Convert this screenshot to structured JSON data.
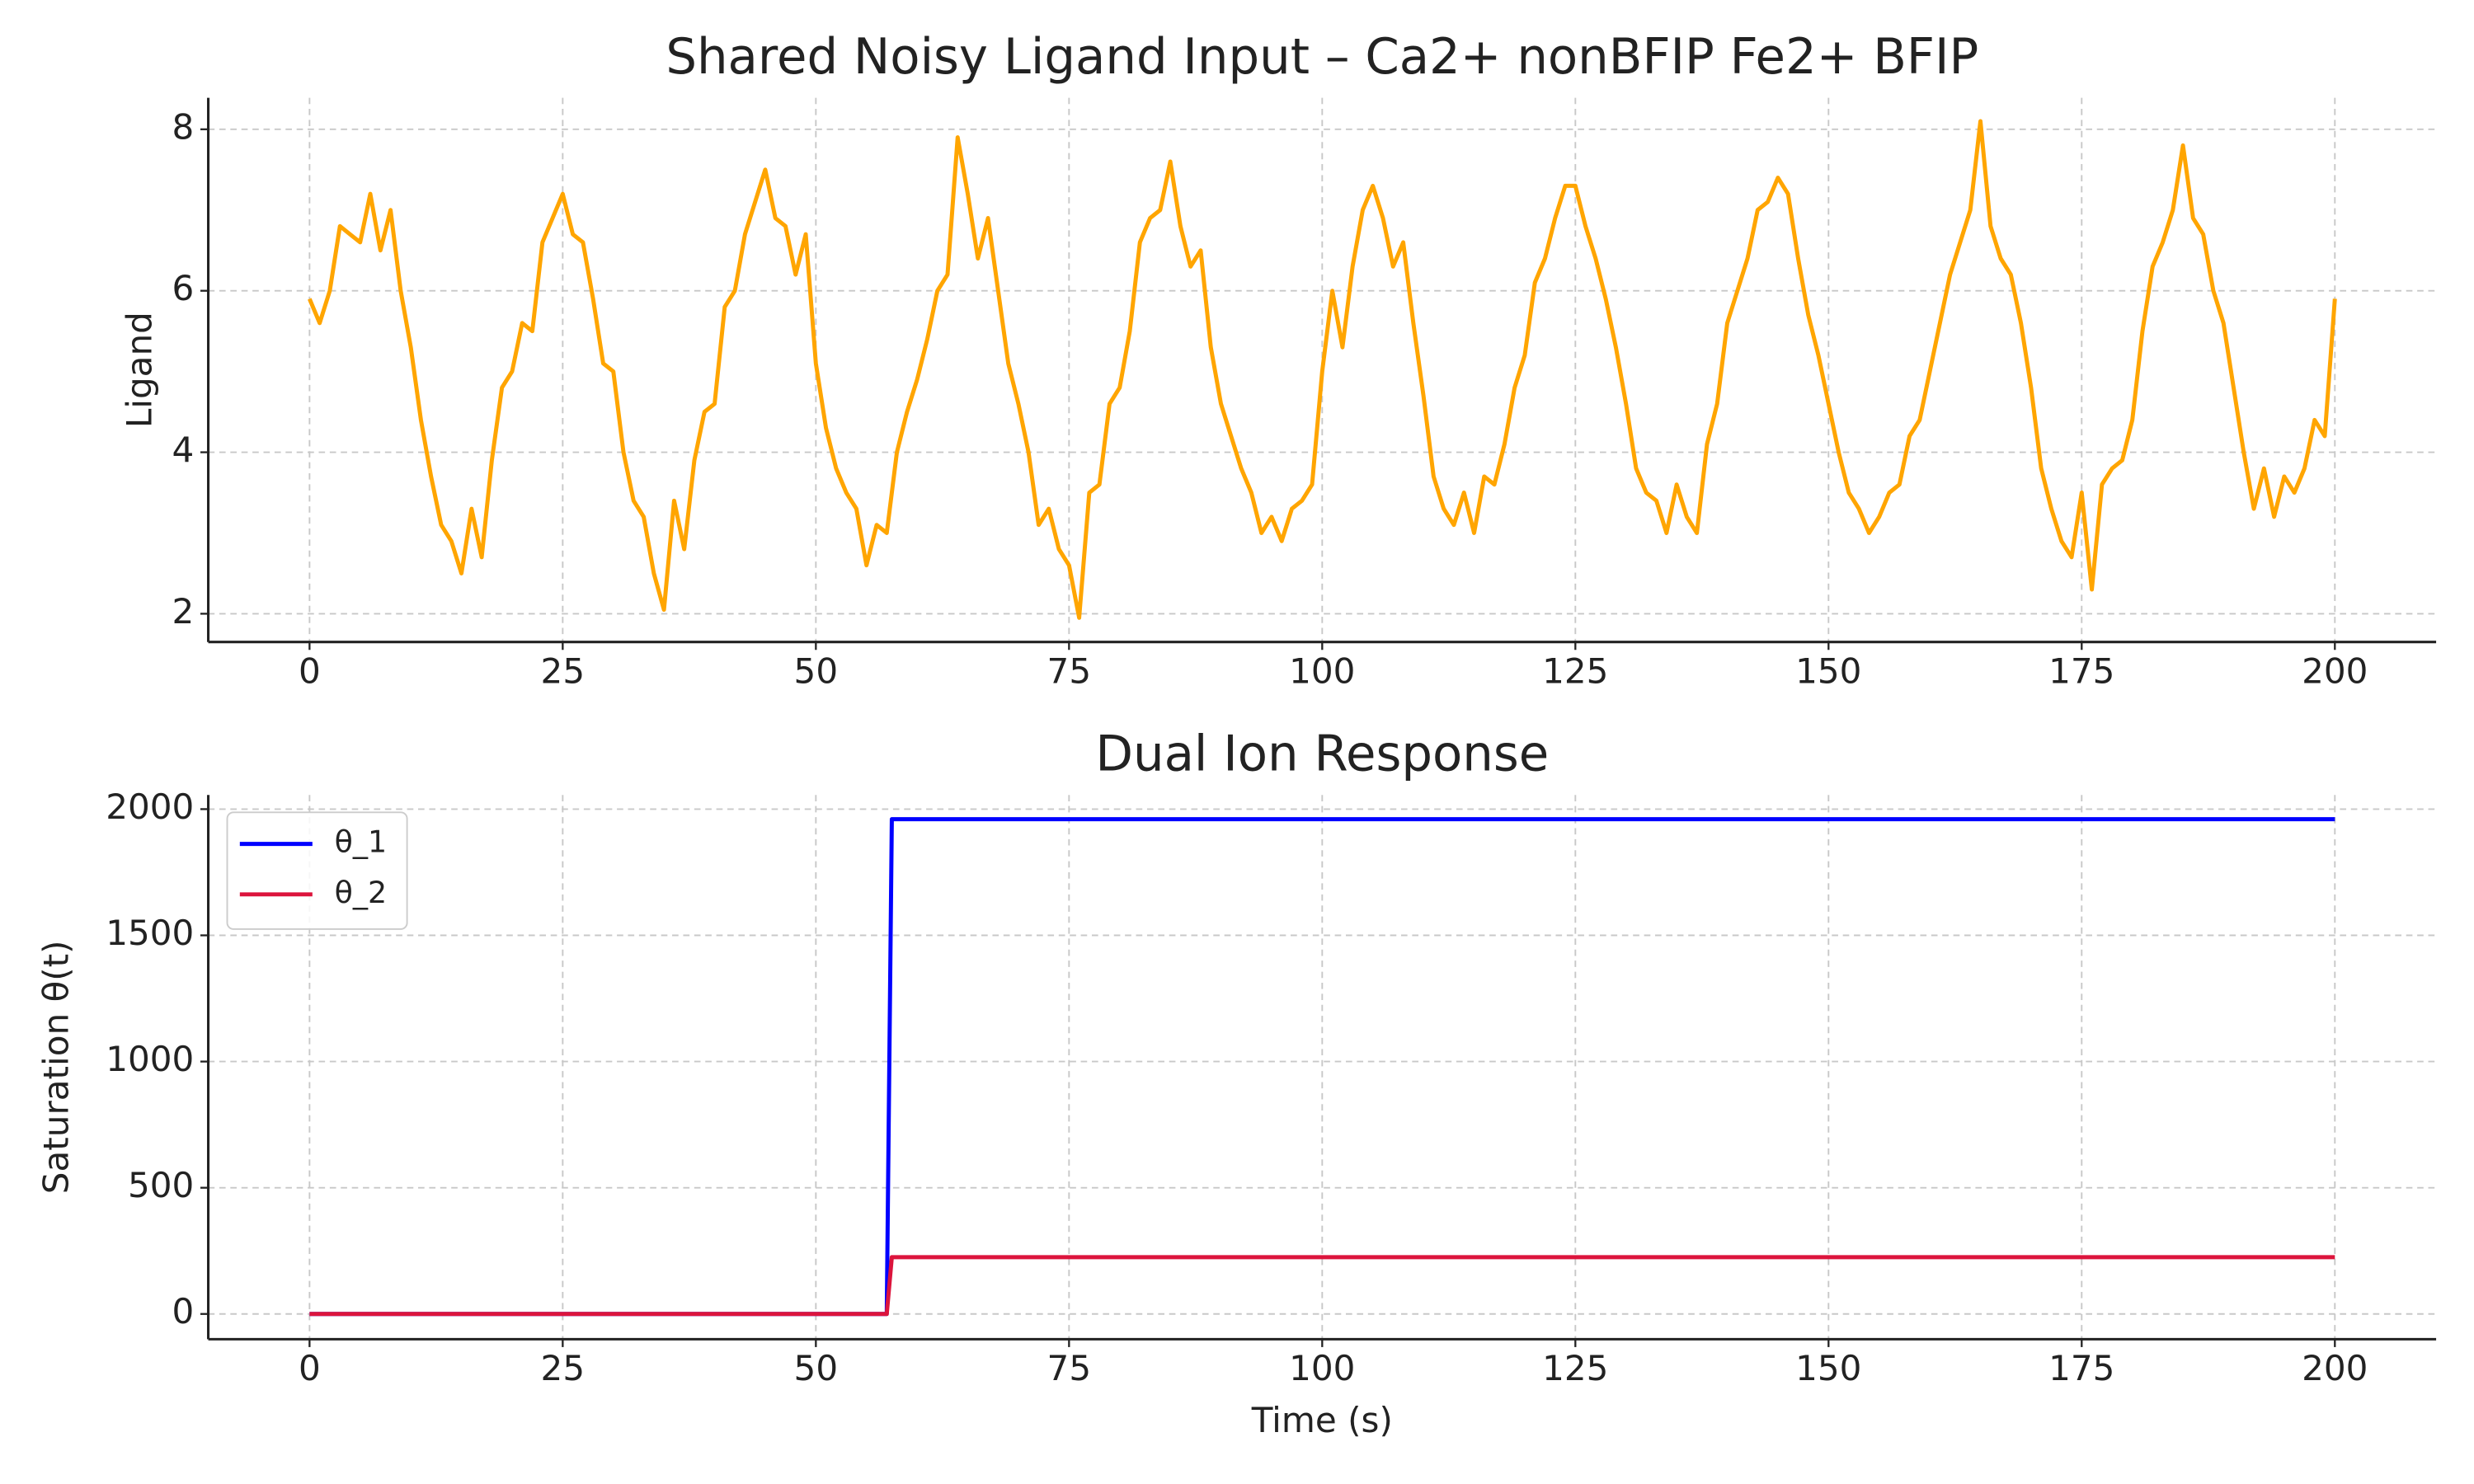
{
  "chart_data": [
    {
      "type": "line",
      "title": "Shared Noisy Ligand Input – Ca2+ nonBFIP Fe2+ BFIP",
      "ylabel": "Ligand",
      "x": [
        0,
        1,
        2,
        3,
        4,
        5,
        6,
        7,
        8,
        9,
        10,
        11,
        12,
        13,
        14,
        15,
        16,
        17,
        18,
        19,
        20,
        21,
        22,
        23,
        24,
        25,
        26,
        27,
        28,
        29,
        30,
        31,
        32,
        33,
        34,
        35,
        36,
        37,
        38,
        39,
        40,
        41,
        42,
        43,
        44,
        45,
        46,
        47,
        48,
        49,
        50,
        51,
        52,
        53,
        54,
        55,
        56,
        57,
        58,
        59,
        60,
        61,
        62,
        63,
        64,
        65,
        66,
        67,
        68,
        69,
        70,
        71,
        72,
        73,
        74,
        75,
        76,
        77,
        78,
        79,
        80,
        81,
        82,
        83,
        84,
        85,
        86,
        87,
        88,
        89,
        90,
        91,
        92,
        93,
        94,
        95,
        96,
        97,
        98,
        99,
        100,
        101,
        102,
        103,
        104,
        105,
        106,
        107,
        108,
        109,
        110,
        111,
        112,
        113,
        114,
        115,
        116,
        117,
        118,
        119,
        120,
        121,
        122,
        123,
        124,
        125,
        126,
        127,
        128,
        129,
        130,
        131,
        132,
        133,
        134,
        135,
        136,
        137,
        138,
        139,
        140,
        141,
        142,
        143,
        144,
        145,
        146,
        147,
        148,
        149,
        150,
        151,
        152,
        153,
        154,
        155,
        156,
        157,
        158,
        159,
        160,
        161,
        162,
        163,
        164,
        165,
        166,
        167,
        168,
        169,
        170,
        171,
        172,
        173,
        174,
        175,
        176,
        177,
        178,
        179,
        180,
        181,
        182,
        183,
        184,
        185,
        186,
        187,
        188,
        189,
        190,
        191,
        192,
        193,
        194,
        195,
        196,
        197,
        198,
        199,
        200
      ],
      "series": [
        {
          "name": "Ligand",
          "color": "#ffa500",
          "values": [
            5.9,
            5.6,
            6.0,
            6.8,
            6.7,
            6.6,
            7.2,
            6.5,
            7.0,
            6.0,
            5.3,
            4.4,
            3.7,
            3.1,
            2.9,
            2.5,
            3.3,
            2.7,
            3.9,
            4.8,
            5.0,
            5.6,
            5.5,
            6.6,
            6.9,
            7.2,
            6.7,
            6.6,
            5.9,
            5.1,
            5.0,
            4.0,
            3.4,
            3.2,
            2.5,
            2.05,
            3.4,
            2.8,
            3.9,
            4.5,
            4.6,
            5.8,
            6.0,
            6.7,
            7.1,
            7.5,
            6.9,
            6.8,
            6.2,
            6.7,
            5.1,
            4.3,
            3.8,
            3.5,
            3.3,
            2.6,
            3.1,
            3.0,
            4.0,
            4.5,
            4.9,
            5.4,
            6.0,
            6.2,
            7.9,
            7.2,
            6.4,
            6.9,
            6.0,
            5.1,
            4.6,
            4.0,
            3.1,
            3.3,
            2.8,
            2.6,
            1.95,
            3.5,
            3.6,
            4.6,
            4.8,
            5.5,
            6.6,
            6.9,
            7.0,
            7.6,
            6.8,
            6.3,
            6.5,
            5.3,
            4.6,
            4.2,
            3.8,
            3.5,
            3.0,
            3.2,
            2.9,
            3.3,
            3.4,
            3.6,
            5.0,
            6.0,
            5.3,
            6.3,
            7.0,
            7.3,
            6.9,
            6.3,
            6.6,
            5.6,
            4.7,
            3.7,
            3.3,
            3.1,
            3.5,
            3.0,
            3.7,
            3.6,
            4.1,
            4.8,
            5.2,
            6.1,
            6.4,
            6.9,
            7.3,
            7.3,
            6.8,
            6.4,
            5.9,
            5.3,
            4.6,
            3.8,
            3.5,
            3.4,
            3.0,
            3.6,
            3.2,
            3.0,
            4.1,
            4.6,
            5.6,
            6.0,
            6.4,
            7.0,
            7.1,
            7.4,
            7.2,
            6.4,
            5.7,
            5.2,
            4.6,
            4.0,
            3.5,
            3.3,
            3.0,
            3.2,
            3.5,
            3.6,
            4.2,
            4.4,
            5.0,
            5.6,
            6.2,
            6.6,
            7.0,
            8.1,
            6.8,
            6.4,
            6.2,
            5.6,
            4.8,
            3.8,
            3.3,
            2.9,
            2.7,
            3.5,
            2.3,
            3.6,
            3.8,
            3.9,
            4.4,
            5.5,
            6.3,
            6.6,
            7.0,
            7.8,
            6.9,
            6.7,
            6.0,
            5.6,
            4.8,
            4.0,
            3.3,
            3.8,
            3.2,
            3.7,
            3.5,
            3.8,
            4.4,
            4.2,
            5.9
          ]
        }
      ],
      "xlim": [
        -10,
        210
      ],
      "xticks": [
        0,
        25,
        50,
        75,
        100,
        125,
        150,
        175,
        200
      ],
      "ylim": [
        1.65,
        8.39
      ],
      "yticks": [
        2,
        4,
        6,
        8
      ],
      "grid": true
    },
    {
      "type": "line",
      "title": "Dual Ion Response",
      "xlabel": "Time (s)",
      "ylabel": "Saturation θ(t)",
      "x": [
        0,
        57,
        57.5,
        200
      ],
      "series": [
        {
          "name": "θ_1",
          "color": "#0000ff",
          "values": [
            0,
            0,
            1960,
            1960
          ]
        },
        {
          "name": "θ_2",
          "color": "#dc143c",
          "values": [
            0,
            0,
            225,
            225
          ]
        }
      ],
      "xlim": [
        -10,
        210
      ],
      "xticks": [
        0,
        25,
        50,
        75,
        100,
        125,
        150,
        175,
        200
      ],
      "ylim": [
        -100,
        2056
      ],
      "yticks": [
        0,
        500,
        1000,
        1500,
        2000
      ],
      "grid": true,
      "legend": "upper left"
    }
  ]
}
